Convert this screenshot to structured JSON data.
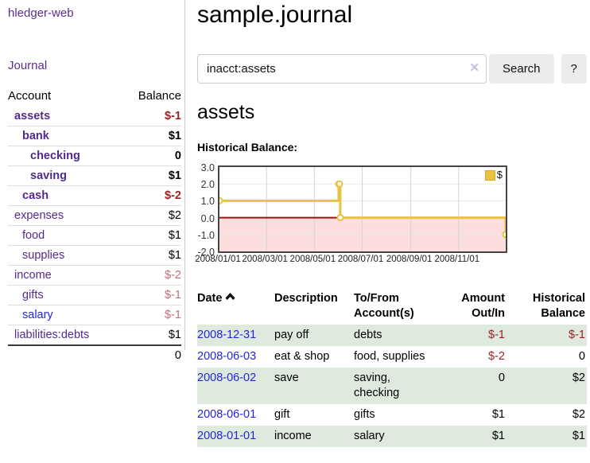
{
  "app": {
    "brand": "hledger-web",
    "nav_journal": "Journal"
  },
  "sidebar": {
    "headers": {
      "account": "Account",
      "balance": "Balance"
    },
    "accounts": [
      {
        "name": "assets",
        "balance": "$-1",
        "level": 1,
        "bold": true,
        "balance_style": "neg"
      },
      {
        "name": "bank",
        "balance": "$1",
        "level": 2,
        "bold": true,
        "balance_style": "normal"
      },
      {
        "name": "checking",
        "balance": "0",
        "level": 3,
        "bold": true,
        "balance_style": "normal"
      },
      {
        "name": "saving",
        "balance": "$1",
        "level": 3,
        "bold": true,
        "balance_style": "normal"
      },
      {
        "name": "cash",
        "balance": "$-2",
        "level": 2,
        "bold": true,
        "balance_style": "neg"
      },
      {
        "name": "expenses",
        "balance": "$2",
        "level": 1,
        "bold": false,
        "balance_style": "normal"
      },
      {
        "name": "food",
        "balance": "$1",
        "level": 2,
        "bold": false,
        "balance_style": "normal"
      },
      {
        "name": "supplies",
        "balance": "$1",
        "level": 2,
        "bold": false,
        "balance_style": "normal"
      },
      {
        "name": "income",
        "balance": "$-2",
        "level": 1,
        "bold": false,
        "balance_style": "pale"
      },
      {
        "name": "gifts",
        "balance": "$-1",
        "level": 2,
        "bold": false,
        "balance_style": "pale"
      },
      {
        "name": "salary",
        "balance": "$-1",
        "level": 2,
        "bold": false,
        "balance_style": "pale",
        "link_color": "blue"
      },
      {
        "name": "liabilities:debts",
        "balance": "$1",
        "level": 1,
        "bold": false,
        "balance_style": "normal"
      }
    ],
    "total": "0"
  },
  "header": {
    "title": "sample.journal"
  },
  "search": {
    "value": "inacct:assets",
    "clear_icon": "✕",
    "button": "Search",
    "help_button": "?"
  },
  "account_page": {
    "heading": "assets",
    "chart_label": "Historical Balance:"
  },
  "chart_data": {
    "type": "line",
    "title": "Historical Balance",
    "step": true,
    "x_min": "2008-01-01",
    "x_max": "2008-12-31",
    "ylim": [
      -2,
      3
    ],
    "y_ticks": [
      3,
      2,
      1,
      0,
      -1,
      -2
    ],
    "x_ticks": [
      "2008/01/01",
      "2008/03/01",
      "2008/05/01",
      "2008/07/01",
      "2008/09/01",
      "2008/11/01"
    ],
    "legend_position": "top-right",
    "grid": true,
    "series": [
      {
        "name": "$",
        "color": "#e9c23f",
        "points": [
          {
            "date": "2008-01-01",
            "value": 1
          },
          {
            "date": "2008-06-01",
            "value": 2
          },
          {
            "date": "2008-06-02",
            "value": 2
          },
          {
            "date": "2008-06-03",
            "value": 0
          },
          {
            "date": "2008-12-31",
            "value": -1
          }
        ]
      }
    ],
    "negative_region_color": "#fcdede",
    "zero_line_color": "#a01212"
  },
  "register": {
    "columns": [
      "Date",
      "Description",
      "To/From Account(s)",
      "Amount Out/In",
      "Historical Balance"
    ],
    "rows": [
      {
        "date": "2008-12-31",
        "description": "pay off",
        "accounts": "debts",
        "amount": "$-1",
        "amount_neg": true,
        "balance": "$-1",
        "balance_neg": true
      },
      {
        "date": "2008-06-03",
        "description": "eat & shop",
        "accounts": "food, supplies",
        "amount": "$-2",
        "amount_neg": true,
        "balance": "0",
        "balance_neg": false
      },
      {
        "date": "2008-06-02",
        "description": "save",
        "accounts": "saving, checking",
        "amount": "0",
        "amount_neg": false,
        "balance": "$2",
        "balance_neg": false
      },
      {
        "date": "2008-06-01",
        "description": "gift",
        "accounts": "gifts",
        "amount": "$1",
        "amount_neg": false,
        "balance": "$2",
        "balance_neg": false
      },
      {
        "date": "2008-01-01",
        "description": "income",
        "accounts": "salary",
        "amount": "$1",
        "amount_neg": false,
        "balance": "$1",
        "balance_neg": false
      }
    ]
  },
  "colors": {
    "link_purple": "#5b2d90",
    "account_purple": "#532a8c",
    "link_blue": "#2424e0",
    "negative_red": "#9c1f1f",
    "pale_negative_red": "#bf7079",
    "row_green": "#deeadd",
    "chart_line_gold": "#e9c23f",
    "chart_negative_pink": "#fcdede",
    "chart_zero_line": "#a01212",
    "chart_border": "#454545",
    "button_gray": "#ececec"
  }
}
